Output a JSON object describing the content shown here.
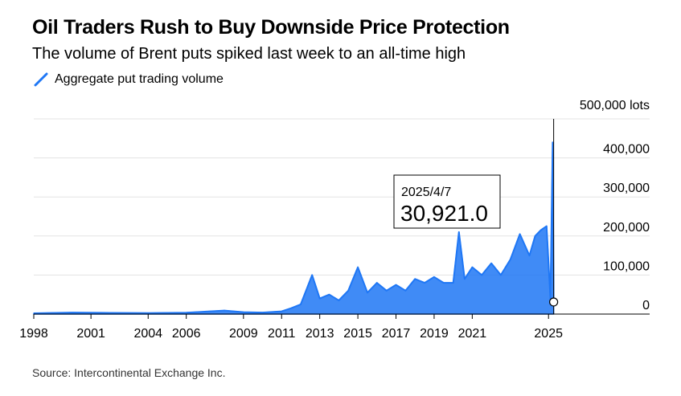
{
  "header": {
    "title": "Oil Traders Rush to Buy Downside Price Protection",
    "subtitle": "The volume of Brent puts spiked last week to an all-time high"
  },
  "legend": {
    "label": "Aggregate put trading volume",
    "color": "#1f77f5"
  },
  "footer": {
    "source": "Source: Intercontinental Exchange Inc."
  },
  "tooltip": {
    "date": "2025/4/7",
    "value": "30,921.0"
  },
  "chart_data": {
    "type": "area",
    "title": "Oil Traders Rush to Buy Downside Price Protection",
    "subtitle": "The volume of Brent puts spiked last week to an all-time high",
    "xlabel": "",
    "ylabel": "",
    "y_unit": "lots",
    "xlim": [
      1998,
      2025.75
    ],
    "ylim": [
      0,
      500000
    ],
    "x_ticks": [
      1998,
      2001,
      2004,
      2006,
      2009,
      2011,
      2013,
      2015,
      2017,
      2019,
      2021,
      2025
    ],
    "y_ticks": [
      {
        "value": 0,
        "label": "0"
      },
      {
        "value": 100000,
        "label": "100,000"
      },
      {
        "value": 200000,
        "label": "200,000"
      },
      {
        "value": 300000,
        "label": "300,000"
      },
      {
        "value": 400000,
        "label": "400,000"
      },
      {
        "value": 500000,
        "label": "500,000 lots"
      }
    ],
    "grid": "horizontal",
    "legend_position": "top-left",
    "series": [
      {
        "name": "Aggregate put trading volume",
        "color": "#1f77f5",
        "points": [
          {
            "x": 1998.0,
            "y": 2000
          },
          {
            "x": 2000.0,
            "y": 4000
          },
          {
            "x": 2002.0,
            "y": 3000
          },
          {
            "x": 2004.0,
            "y": 2500
          },
          {
            "x": 2006.0,
            "y": 3500
          },
          {
            "x": 2008.0,
            "y": 9000
          },
          {
            "x": 2009.0,
            "y": 5000
          },
          {
            "x": 2010.0,
            "y": 4000
          },
          {
            "x": 2011.0,
            "y": 7000
          },
          {
            "x": 2011.5,
            "y": 15000
          },
          {
            "x": 2012.0,
            "y": 25000
          },
          {
            "x": 2012.6,
            "y": 100000
          },
          {
            "x": 2013.0,
            "y": 40000
          },
          {
            "x": 2013.5,
            "y": 50000
          },
          {
            "x": 2014.0,
            "y": 35000
          },
          {
            "x": 2014.5,
            "y": 60000
          },
          {
            "x": 2015.0,
            "y": 120000
          },
          {
            "x": 2015.5,
            "y": 55000
          },
          {
            "x": 2016.0,
            "y": 80000
          },
          {
            "x": 2016.5,
            "y": 60000
          },
          {
            "x": 2017.0,
            "y": 75000
          },
          {
            "x": 2017.5,
            "y": 60000
          },
          {
            "x": 2018.0,
            "y": 90000
          },
          {
            "x": 2018.5,
            "y": 80000
          },
          {
            "x": 2019.0,
            "y": 95000
          },
          {
            "x": 2019.5,
            "y": 80000
          },
          {
            "x": 2020.0,
            "y": 80000
          },
          {
            "x": 2020.3,
            "y": 210000
          },
          {
            "x": 2020.6,
            "y": 90000
          },
          {
            "x": 2021.0,
            "y": 120000
          },
          {
            "x": 2021.5,
            "y": 100000
          },
          {
            "x": 2022.0,
            "y": 130000
          },
          {
            "x": 2022.5,
            "y": 100000
          },
          {
            "x": 2023.0,
            "y": 140000
          },
          {
            "x": 2023.5,
            "y": 205000
          },
          {
            "x": 2024.0,
            "y": 150000
          },
          {
            "x": 2024.3,
            "y": 200000
          },
          {
            "x": 2024.6,
            "y": 215000
          },
          {
            "x": 2024.9,
            "y": 225000
          },
          {
            "x": 2025.1,
            "y": 40000
          },
          {
            "x": 2025.22,
            "y": 440000
          },
          {
            "x": 2025.27,
            "y": 30921
          }
        ]
      }
    ],
    "annotation": {
      "x": 2025.27,
      "y": 30921,
      "date": "2025/4/7",
      "value": "30,921.0"
    }
  }
}
